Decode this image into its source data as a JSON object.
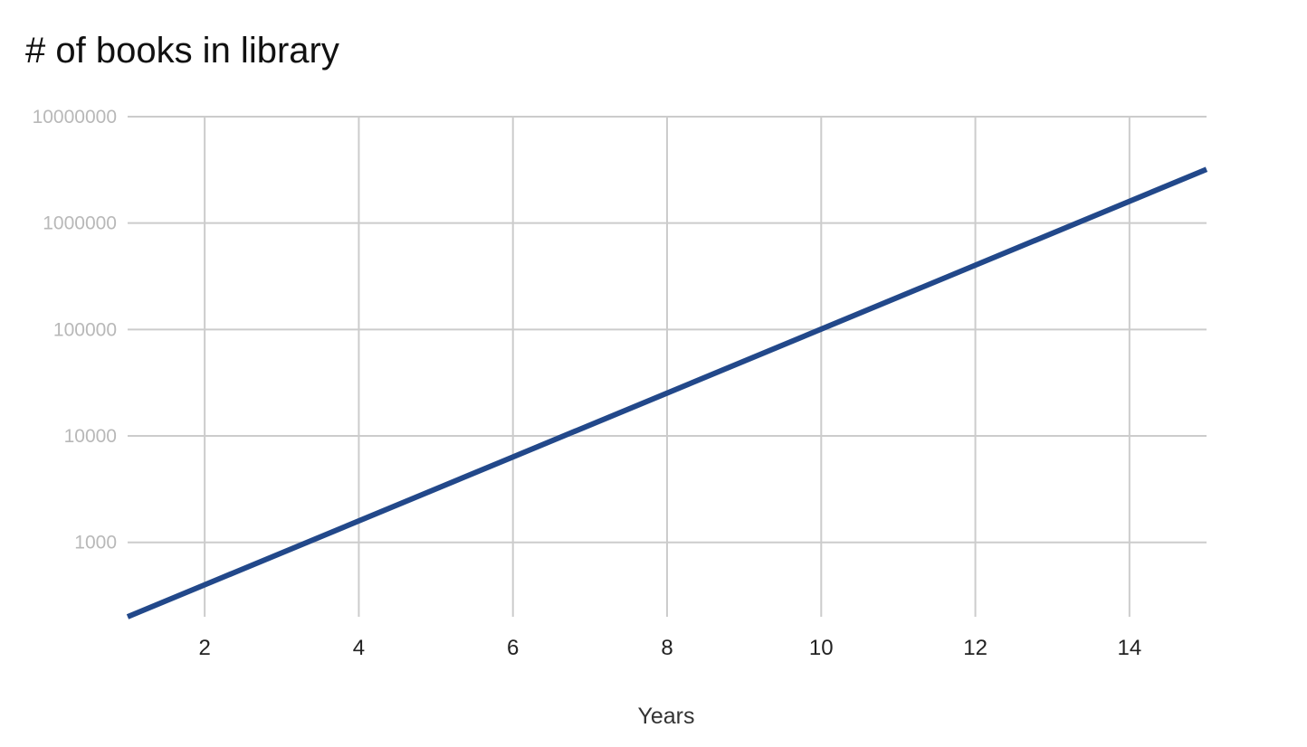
{
  "chart_data": {
    "type": "line",
    "title": "# of books in library",
    "xlabel": "Years",
    "ylabel": "",
    "x_scale": "linear",
    "y_scale": "log",
    "xlim": [
      1,
      15
    ],
    "ylim": [
      200,
      10000000
    ],
    "x_ticks": [
      2,
      4,
      6,
      8,
      10,
      12,
      14
    ],
    "x_tick_labels": [
      "2",
      "4",
      "6",
      "8",
      "10",
      "12",
      "14"
    ],
    "y_ticks": [
      1000,
      10000,
      100000,
      1000000,
      10000000
    ],
    "y_tick_labels": [
      "1000",
      "10000",
      "100000",
      "1000000",
      "10000000"
    ],
    "grid": true,
    "legend": "none",
    "series": [
      {
        "color": "#22488a",
        "x": [
          1,
          15
        ],
        "y": [
          200,
          3200000
        ]
      }
    ]
  }
}
